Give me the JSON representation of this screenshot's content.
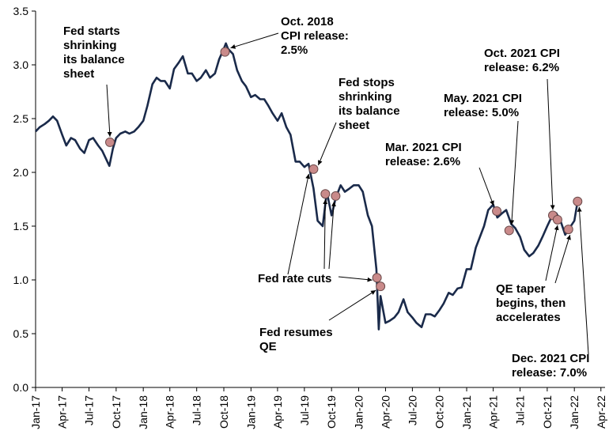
{
  "chart_data": {
    "type": "line",
    "title": "",
    "xlabel": "",
    "ylabel": "",
    "ylim": [
      0.0,
      3.5
    ],
    "yticks": [
      "0.0",
      "0.5",
      "1.0",
      "1.5",
      "2.0",
      "2.5",
      "3.0",
      "3.5"
    ],
    "xlim": [
      "2017-01-01",
      "2022-04-15"
    ],
    "xticks": [
      {
        "date": "2017-01-01",
        "label": "Jan-17"
      },
      {
        "date": "2017-04-01",
        "label": "Apr-17"
      },
      {
        "date": "2017-07-01",
        "label": "Jul-17"
      },
      {
        "date": "2017-10-01",
        "label": "Oct-17"
      },
      {
        "date": "2018-01-01",
        "label": "Jan-18"
      },
      {
        "date": "2018-04-01",
        "label": "Apr-18"
      },
      {
        "date": "2018-07-01",
        "label": "Jul-18"
      },
      {
        "date": "2018-10-01",
        "label": "Oct-18"
      },
      {
        "date": "2019-01-01",
        "label": "Jan-19"
      },
      {
        "date": "2019-04-01",
        "label": "Apr-19"
      },
      {
        "date": "2019-07-01",
        "label": "Jul-19"
      },
      {
        "date": "2019-10-01",
        "label": "Oct-19"
      },
      {
        "date": "2020-01-01",
        "label": "Jan-20"
      },
      {
        "date": "2020-04-01",
        "label": "Apr-20"
      },
      {
        "date": "2020-07-01",
        "label": "Jul-20"
      },
      {
        "date": "2020-10-01",
        "label": "Oct-20"
      },
      {
        "date": "2021-01-01",
        "label": "Jan-21"
      },
      {
        "date": "2021-04-01",
        "label": "Apr-21"
      },
      {
        "date": "2021-07-01",
        "label": "Jul-21"
      },
      {
        "date": "2021-10-01",
        "label": "Oct-21"
      },
      {
        "date": "2022-01-01",
        "label": "Jan-22"
      },
      {
        "date": "2022-04-01",
        "label": "Apr-22"
      }
    ],
    "grid": false,
    "legend": "none",
    "line_color": "#1a2a4a",
    "marker_color": "#c98a8a",
    "series": [
      {
        "x": [
          "2017-01-01",
          "2017-01-15",
          "2017-02-01",
          "2017-02-15",
          "2017-03-01",
          "2017-03-15",
          "2017-04-01",
          "2017-04-15",
          "2017-05-01",
          "2017-05-15",
          "2017-06-01",
          "2017-06-15",
          "2017-07-01",
          "2017-07-15",
          "2017-08-01",
          "2017-08-15",
          "2017-09-01",
          "2017-09-08",
          "2017-09-20",
          "2017-10-01",
          "2017-10-15",
          "2017-11-01",
          "2017-11-15",
          "2017-12-01",
          "2017-12-15",
          "2018-01-01",
          "2018-01-15",
          "2018-02-01",
          "2018-02-15",
          "2018-03-01",
          "2018-03-15",
          "2018-04-01",
          "2018-04-15",
          "2018-05-01",
          "2018-05-15",
          "2018-06-01",
          "2018-06-15",
          "2018-07-01",
          "2018-07-15",
          "2018-08-01",
          "2018-08-15",
          "2018-09-01",
          "2018-09-15",
          "2018-10-01",
          "2018-10-08",
          "2018-10-15",
          "2018-11-01",
          "2018-11-15",
          "2018-12-01",
          "2018-12-15",
          "2019-01-01",
          "2019-01-15",
          "2019-02-01",
          "2019-02-15",
          "2019-03-01",
          "2019-03-15",
          "2019-04-01",
          "2019-04-15",
          "2019-05-01",
          "2019-05-15",
          "2019-06-01",
          "2019-06-15",
          "2019-07-01",
          "2019-07-15",
          "2019-08-01",
          "2019-08-15",
          "2019-09-01",
          "2019-09-15",
          "2019-10-01",
          "2019-10-15",
          "2019-11-01",
          "2019-11-15",
          "2019-12-01",
          "2019-12-15",
          "2020-01-01",
          "2020-01-15",
          "2020-02-01",
          "2020-02-15",
          "2020-03-01",
          "2020-03-09",
          "2020-03-15",
          "2020-04-01",
          "2020-04-15",
          "2020-05-01",
          "2020-05-15",
          "2020-06-01",
          "2020-06-15",
          "2020-07-01",
          "2020-07-15",
          "2020-08-01",
          "2020-08-15",
          "2020-09-01",
          "2020-09-15",
          "2020-10-01",
          "2020-10-15",
          "2020-11-01",
          "2020-11-15",
          "2020-12-01",
          "2020-12-15",
          "2021-01-01",
          "2021-01-15",
          "2021-02-01",
          "2021-02-15",
          "2021-03-01",
          "2021-03-15",
          "2021-04-01",
          "2021-04-15",
          "2021-05-01",
          "2021-05-15",
          "2021-06-01",
          "2021-06-15",
          "2021-07-01",
          "2021-07-15",
          "2021-08-01",
          "2021-08-15",
          "2021-09-01",
          "2021-09-15",
          "2021-10-01",
          "2021-10-15",
          "2021-11-01",
          "2021-11-15",
          "2021-12-01",
          "2021-12-15",
          "2022-01-01",
          "2022-01-12"
        ],
        "y": [
          2.38,
          2.42,
          2.45,
          2.48,
          2.52,
          2.48,
          2.35,
          2.25,
          2.32,
          2.3,
          2.22,
          2.18,
          2.3,
          2.32,
          2.25,
          2.2,
          2.1,
          2.06,
          2.22,
          2.32,
          2.36,
          2.38,
          2.36,
          2.38,
          2.42,
          2.48,
          2.62,
          2.82,
          2.88,
          2.85,
          2.85,
          2.78,
          2.96,
          3.02,
          3.08,
          2.92,
          2.92,
          2.85,
          2.88,
          2.95,
          2.88,
          2.92,
          3.05,
          3.15,
          3.2,
          3.15,
          3.1,
          2.95,
          2.85,
          2.8,
          2.7,
          2.72,
          2.68,
          2.68,
          2.62,
          2.55,
          2.48,
          2.55,
          2.42,
          2.35,
          2.1,
          2.1,
          2.05,
          2.08,
          1.85,
          1.55,
          1.5,
          1.82,
          1.6,
          1.76,
          1.88,
          1.82,
          1.85,
          1.88,
          1.88,
          1.82,
          1.6,
          1.5,
          1.1,
          0.54,
          0.85,
          0.6,
          0.62,
          0.65,
          0.7,
          0.82,
          0.7,
          0.65,
          0.6,
          0.56,
          0.68,
          0.68,
          0.66,
          0.72,
          0.78,
          0.88,
          0.86,
          0.92,
          0.93,
          1.1,
          1.1,
          1.3,
          1.4,
          1.5,
          1.65,
          1.7,
          1.58,
          1.62,
          1.65,
          1.52,
          1.48,
          1.4,
          1.28,
          1.22,
          1.25,
          1.32,
          1.4,
          1.5,
          1.58,
          1.62,
          1.55,
          1.42,
          1.48,
          1.55,
          1.73
        ]
      }
    ],
    "markers": [
      {
        "date": "2017-09-10",
        "value": 2.28
      },
      {
        "date": "2018-10-05",
        "value": 3.12
      },
      {
        "date": "2019-08-01",
        "value": 2.03
      },
      {
        "date": "2019-09-10",
        "value": 1.8
      },
      {
        "date": "2019-10-15",
        "value": 1.78
      },
      {
        "date": "2020-03-03",
        "value": 1.02
      },
      {
        "date": "2020-03-15",
        "value": 0.94
      },
      {
        "date": "2021-04-13",
        "value": 1.64
      },
      {
        "date": "2021-05-25",
        "value": 1.46
      },
      {
        "date": "2021-10-20",
        "value": 1.6
      },
      {
        "date": "2021-11-05",
        "value": 1.56
      },
      {
        "date": "2021-12-12",
        "value": 1.47
      },
      {
        "date": "2022-01-12",
        "value": 1.73
      }
    ],
    "annotations": [
      {
        "lines": [
          "Fed starts",
          "shrinking",
          "its balance",
          "sheet"
        ]
      },
      {
        "lines": [
          "Oct. 2018",
          "CPI release:",
          "2.5%"
        ]
      },
      {
        "lines": [
          "Fed stops",
          "shrinking",
          "its balance",
          "sheet"
        ]
      },
      {
        "lines": [
          "Mar. 2021 CPI",
          "release: 2.6%"
        ]
      },
      {
        "lines": [
          "May. 2021 CPI",
          "release: 5.0%"
        ]
      },
      {
        "lines": [
          "Oct. 2021 CPI",
          "release: 6.2%"
        ]
      },
      {
        "lines": [
          "Fed rate cuts"
        ]
      },
      {
        "lines": [
          "Fed resumes",
          "QE"
        ]
      },
      {
        "lines": [
          "QE taper",
          "begins, then",
          "accelerates"
        ]
      },
      {
        "lines": [
          "Dec. 2021 CPI",
          "release: 7.0%"
        ]
      }
    ]
  }
}
